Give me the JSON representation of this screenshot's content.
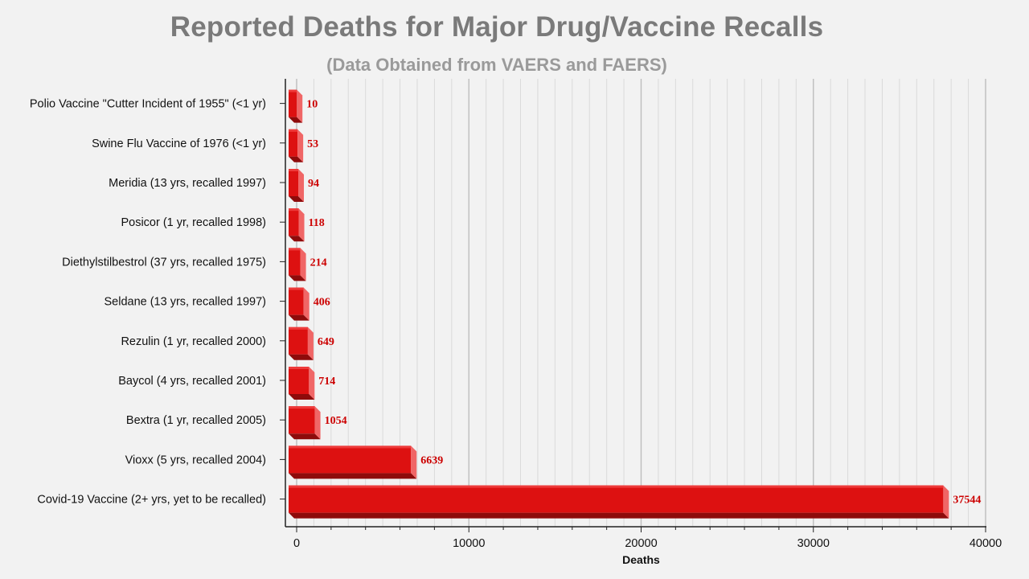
{
  "chart_data": {
    "type": "bar",
    "orientation": "horizontal",
    "title": "Reported Deaths for Major Drug/Vaccine Recalls",
    "subtitle": "(Data Obtained from VAERS and FAERS)",
    "xlabel": "Deaths",
    "ylabel": "",
    "xlim": [
      0,
      40000
    ],
    "xticks": [
      0,
      10000,
      20000,
      30000,
      40000
    ],
    "tick_labels": [
      "0",
      "10000",
      "20000",
      "30000",
      "40000"
    ],
    "grid": true,
    "bar_color": "#dd1111",
    "label_color": "#cc0000",
    "categories": [
      "Polio Vaccine \"Cutter Incident of 1955\" (<1 yr)",
      "Swine Flu Vaccine of 1976 (<1 yr)",
      "Meridia (13 yrs, recalled 1997)",
      "Posicor (1 yr, recalled 1998)",
      "Diethylstilbestrol (37 yrs, recalled 1975)",
      "Seldane (13 yrs, recalled 1997)",
      "Rezulin (1 yr, recalled 2000)",
      "Baycol (4 yrs, recalled 2001)",
      "Bextra (1 yr, recalled 2005)",
      "Vioxx (5 yrs, recalled 2004)",
      "Covid-19 Vaccine (2+ yrs, yet to be recalled)"
    ],
    "values": [
      10,
      53,
      94,
      118,
      214,
      406,
      649,
      714,
      1054,
      6639,
      37544
    ]
  }
}
